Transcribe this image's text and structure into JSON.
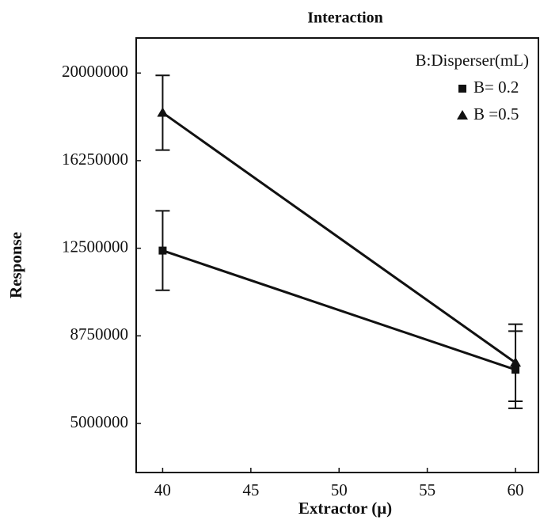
{
  "chart_data": {
    "type": "line",
    "title": "Interaction",
    "xlabel": "Extractor (μ)",
    "ylabel": "Response",
    "legend_title": "B:Disperser(mL)",
    "legend": "upper right",
    "x": [
      40,
      60
    ],
    "series": [
      {
        "name": "B= 0.2",
        "color": "#111111",
        "marker": "square",
        "values": [
          12400000,
          7300000
        ],
        "errors": [
          1700000,
          1650000
        ]
      },
      {
        "name": "B =0.5",
        "color": "#111111",
        "marker": "triangle",
        "values": [
          18300000,
          7600000
        ],
        "errors": [
          1600000,
          1650000
        ]
      }
    ],
    "xlim": [
      38.5,
      61.3
    ],
    "xticks": [
      40,
      45,
      50,
      55,
      60
    ],
    "ylim": [
      2900000,
      21500000
    ],
    "yticks": [
      5000000,
      8750000,
      12500000,
      16250000,
      20000000
    ]
  }
}
